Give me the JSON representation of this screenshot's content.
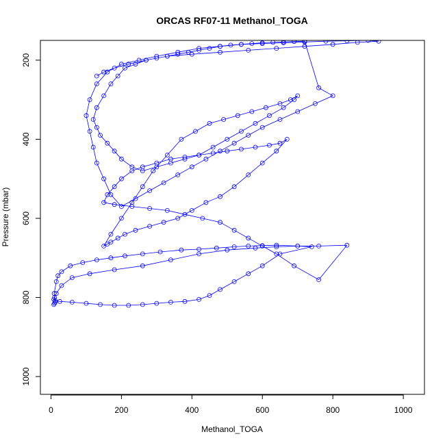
{
  "chart_data": {
    "type": "scatter",
    "title": "ORCAS RF07-11 Methanol_TOGA",
    "xlabel": "Methanol_TOGA",
    "ylabel": "Pressure (mbar)",
    "xlim": [
      -30,
      1060
    ],
    "ylim": [
      1045,
      150
    ],
    "y_reversed": true,
    "x_ticks": [
      0,
      200,
      400,
      600,
      800,
      1000
    ],
    "y_ticks": [
      200,
      400,
      600,
      800,
      1000
    ],
    "grid": false,
    "legend": "none",
    "marker": "open-circle",
    "connected": true,
    "color": "#0000ff",
    "series": [
      {
        "x": [
          8,
          10,
          12,
          9,
          15,
          20,
          30,
          55,
          90,
          130,
          170,
          210,
          260,
          310,
          370,
          420,
          470,
          520,
          560,
          600,
          640,
          700,
          740,
          650,
          600,
          560,
          520,
          480,
          450,
          420,
          380,
          340,
          300,
          260,
          220,
          180,
          140,
          100,
          60,
          25,
          12,
          8,
          10,
          15,
          30,
          60,
          110,
          180,
          260,
          340,
          420,
          500,
          580,
          640,
          700,
          760,
          840,
          760,
          690,
          640,
          600,
          560,
          520,
          480,
          430,
          380,
          330,
          280,
          230,
          180,
          150,
          160,
          180,
          200,
          230,
          260,
          300,
          340,
          380,
          420,
          460,
          500,
          540,
          580,
          620,
          650,
          670,
          640,
          600,
          560,
          520,
          480,
          440,
          400,
          360,
          320,
          280,
          240,
          210,
          190,
          170,
          160,
          150,
          170,
          200,
          230,
          260,
          290,
          330,
          370,
          410,
          450,
          490,
          530,
          570,
          610,
          650,
          680,
          700,
          690,
          660,
          620,
          580,
          540,
          500,
          460,
          420,
          380,
          340,
          300,
          260,
          230,
          200,
          180,
          160,
          140,
          130,
          120,
          130,
          150,
          170,
          190,
          210,
          240,
          270,
          300,
          330,
          360,
          390,
          420,
          450,
          480,
          510,
          540,
          570,
          600,
          630,
          660,
          690,
          720,
          760,
          800,
          750,
          700,
          650,
          600,
          560,
          520,
          480,
          440,
          400,
          360,
          320,
          280,
          240,
          200,
          170,
          150,
          130,
          120,
          110,
          100,
          110,
          130,
          160,
          200,
          250,
          300,
          360,
          420,
          480,
          540,
          600,
          660,
          720,
          780,
          840,
          900,
          930,
          870,
          800,
          720,
          640,
          560,
          480,
          400,
          330,
          270,
          220,
          180,
          150,
          130
        ],
        "y": [
          818,
          815,
          812,
          790,
          760,
          745,
          735,
          720,
          712,
          705,
          700,
          695,
          690,
          685,
          680,
          678,
          675,
          672,
          670,
          669,
          668,
          670,
          672,
          690,
          720,
          740,
          760,
          780,
          795,
          805,
          810,
          812,
          815,
          818,
          820,
          820,
          818,
          815,
          812,
          810,
          808,
          805,
          800,
          790,
          770,
          750,
          740,
          730,
          720,
          705,
          690,
          680,
          675,
          672,
          670,
          670,
          668,
          755,
          720,
          690,
          670,
          650,
          630,
          610,
          600,
          590,
          580,
          575,
          570,
          565,
          560,
          540,
          520,
          500,
          480,
          470,
          460,
          450,
          445,
          440,
          435,
          430,
          425,
          420,
          415,
          410,
          400,
          430,
          460,
          490,
          520,
          545,
          560,
          580,
          600,
          610,
          620,
          630,
          640,
          650,
          660,
          665,
          670,
          640,
          600,
          560,
          520,
          480,
          440,
          400,
          380,
          360,
          350,
          340,
          330,
          320,
          310,
          300,
          290,
          300,
          320,
          340,
          360,
          380,
          400,
          420,
          440,
          450,
          460,
          470,
          480,
          470,
          450,
          430,
          410,
          390,
          370,
          350,
          320,
          290,
          260,
          240,
          220,
          210,
          200,
          195,
          190,
          185,
          180,
          175,
          170,
          165,
          162,
          160,
          158,
          156,
          155,
          154,
          153,
          152,
          270,
          290,
          310,
          330,
          350,
          370,
          390,
          410,
          430,
          450,
          470,
          490,
          510,
          530,
          550,
          570,
          540,
          500,
          460,
          420,
          380,
          340,
          300,
          260,
          230,
          210,
          200,
          190,
          180,
          170,
          165,
          160,
          158,
          156,
          154,
          152,
          151,
          150,
          152,
          155,
          160,
          165,
          170,
          175,
          180,
          185,
          190,
          200,
          210,
          220,
          230,
          240
        ]
      }
    ]
  }
}
